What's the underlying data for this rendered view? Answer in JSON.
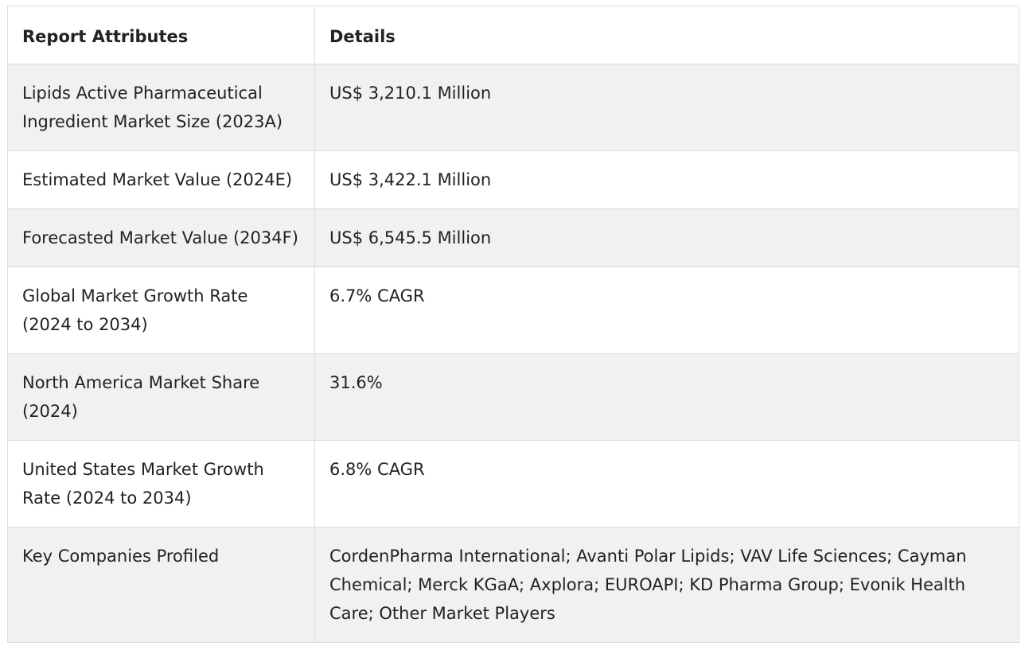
{
  "table": {
    "headers": {
      "attributes": "Report Attributes",
      "details": "Details"
    },
    "rows": [
      {
        "attribute": "Lipids Active Pharmaceutical Ingredient Market Size (2023A)",
        "detail": "US$ 3,210.1 Million"
      },
      {
        "attribute": "Estimated Market Value (2024E)",
        "detail": "US$ 3,422.1 Million"
      },
      {
        "attribute": "Forecasted Market Value (2034F)",
        "detail": "US$ 6,545.5 Million"
      },
      {
        "attribute": "Global Market Growth Rate (2024 to 2034)",
        "detail": "6.7% CAGR"
      },
      {
        "attribute": "North America Market Share (2024)",
        "detail": "31.6%"
      },
      {
        "attribute": "United States Market Growth Rate (2024 to 2034)",
        "detail": "6.8% CAGR"
      },
      {
        "attribute": "Key Companies Profiled",
        "detail": "CordenPharma International; Avanti Polar Lipids; VAV Life Sciences; Cayman Chemical; Merck KGaA; Axplora; EUROAPI; KD Pharma Group; Evonik Health Care; Other Market Players"
      }
    ]
  }
}
